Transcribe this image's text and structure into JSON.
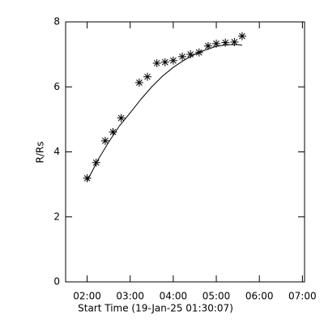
{
  "chart_data": {
    "type": "scatter",
    "x_label": "Start Time (19-Jan-25 01:30:07)",
    "y_label": "R/Rs",
    "xlim": [
      1.5,
      7.05
    ],
    "ylim": [
      0,
      8
    ],
    "xticks": [
      {
        "value": 2,
        "label": "02:00"
      },
      {
        "value": 3,
        "label": "03:00"
      },
      {
        "value": 4,
        "label": "04:00"
      },
      {
        "value": 5,
        "label": "05:00"
      },
      {
        "value": 6,
        "label": "06:00"
      },
      {
        "value": 7,
        "label": "07:00"
      }
    ],
    "yticks": [
      0,
      2,
      4,
      6,
      8
    ],
    "series": [
      {
        "style": "star",
        "color": "#000000",
        "x": [
          2.0,
          2.21,
          2.42,
          2.6,
          2.79,
          3.21,
          3.4,
          3.62,
          3.81,
          4.0,
          4.21,
          4.4,
          4.6,
          4.81,
          5.0,
          5.21,
          5.42,
          5.6
        ],
        "values": [
          3.19,
          3.67,
          4.34,
          4.61,
          5.04,
          6.13,
          6.31,
          6.73,
          6.76,
          6.81,
          6.93,
          7.0,
          7.06,
          7.26,
          7.33,
          7.36,
          7.38,
          7.56
        ]
      },
      {
        "style": "line",
        "color": "#000000",
        "x": [
          2.0,
          2.25,
          2.5,
          2.75,
          3.0,
          3.25,
          3.5,
          3.75,
          4.0,
          4.25,
          4.5,
          4.75,
          5.0,
          5.25,
          5.5,
          5.6
        ],
        "values": [
          3.1,
          3.75,
          4.3,
          4.8,
          5.2,
          5.62,
          6.0,
          6.33,
          6.6,
          6.82,
          7.0,
          7.14,
          7.25,
          7.3,
          7.3,
          7.28
        ]
      }
    ]
  }
}
